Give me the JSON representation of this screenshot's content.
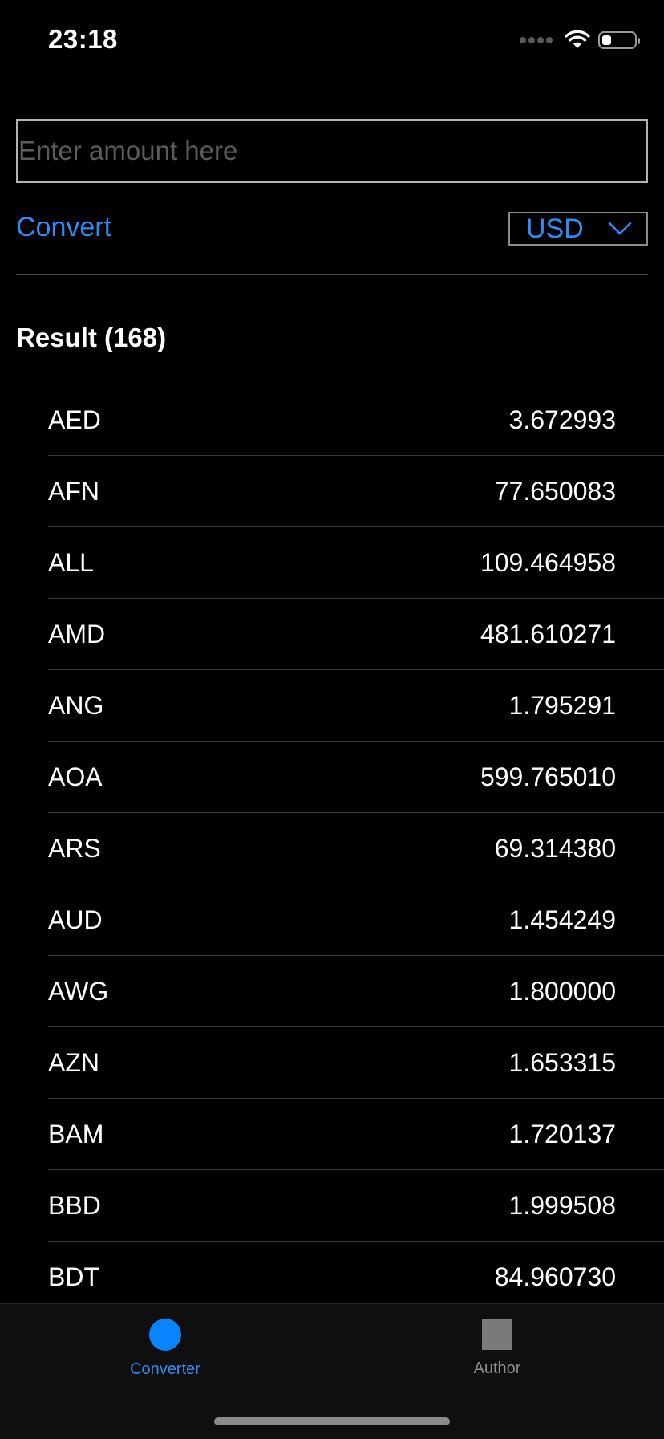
{
  "status_bar": {
    "time": "23:18",
    "icons": [
      "signal-icon",
      "wifi-icon",
      "battery-icon"
    ],
    "battery_level": 0.3
  },
  "converter": {
    "amount_placeholder": "Enter amount here",
    "amount_value": "",
    "convert_label": "Convert",
    "selected_currency": "USD"
  },
  "result": {
    "title": "Result (168)",
    "rates": [
      {
        "code": "AED",
        "value": "3.672993"
      },
      {
        "code": "AFN",
        "value": "77.650083"
      },
      {
        "code": "ALL",
        "value": "109.464958"
      },
      {
        "code": "AMD",
        "value": "481.610271"
      },
      {
        "code": "ANG",
        "value": "1.795291"
      },
      {
        "code": "AOA",
        "value": "599.765010"
      },
      {
        "code": "ARS",
        "value": "69.314380"
      },
      {
        "code": "AUD",
        "value": "1.454249"
      },
      {
        "code": "AWG",
        "value": "1.800000"
      },
      {
        "code": "AZN",
        "value": "1.653315"
      },
      {
        "code": "BAM",
        "value": "1.720137"
      },
      {
        "code": "BBD",
        "value": "1.999508"
      },
      {
        "code": "BDT",
        "value": "84.960730"
      }
    ]
  },
  "tab_bar": {
    "tabs": [
      {
        "label": "Converter",
        "icon": "circle-icon",
        "active": true
      },
      {
        "label": "Author",
        "icon": "square-icon",
        "active": false
      }
    ]
  },
  "colors": {
    "accent": "#2f8cf5",
    "background": "#000000",
    "tab_bar": "#0f0f0f"
  }
}
